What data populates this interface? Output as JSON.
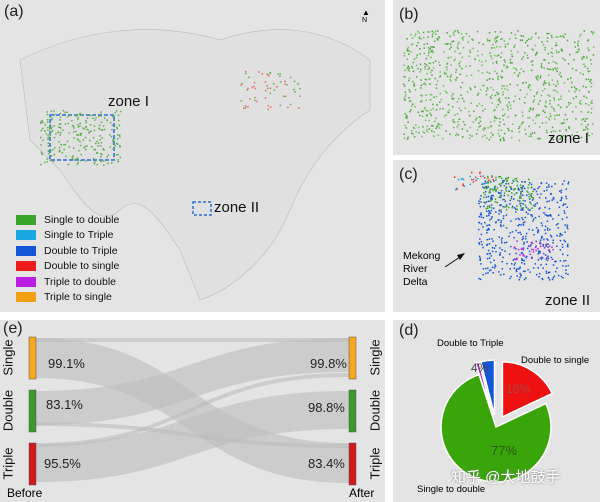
{
  "panels": {
    "a": "(a)",
    "b": "(b)",
    "c": "(c)",
    "d": "(d)",
    "e": "(e)"
  },
  "map_a": {
    "zone1": "zone I",
    "zone2": "zone II",
    "north": "N"
  },
  "map_b": {
    "zone": "zone I"
  },
  "map_c": {
    "zone": "zone II",
    "annotation": [
      "Mekong",
      "River",
      "Delta"
    ]
  },
  "legend": [
    {
      "label": "Single  to double",
      "color": "#3aa52a"
    },
    {
      "label": "Single  to Triple",
      "color": "#1aa8e0"
    },
    {
      "label": "Double to Triple",
      "color": "#1456d8"
    },
    {
      "label": "Double to single",
      "color": "#ee1c1c"
    },
    {
      "label": "Triple   to double",
      "color": "#b81fe0"
    },
    {
      "label": "Triple   to single",
      "color": "#f0a010"
    }
  ],
  "chart_data": [
    {
      "type": "pie",
      "panel": "(d)",
      "slices": [
        {
          "label": "Double to single",
          "value": 18,
          "value_label": "18%",
          "color": "#ee1111",
          "exploded": true
        },
        {
          "label": "Single  to double",
          "value": 77,
          "value_label": "77%",
          "color": "#3aa50a",
          "exploded": false
        },
        {
          "label": "",
          "value": 1,
          "value_label": "",
          "color": "#b020c0",
          "exploded": true
        },
        {
          "label": "Double to Triple",
          "value": 4,
          "value_label": "4%",
          "color": "#1456d8",
          "exploded": true
        }
      ]
    },
    {
      "type": "sankey",
      "panel": "(e)",
      "left_label": "Before",
      "right_label": "After",
      "nodes": [
        {
          "label": "Single",
          "color": "#f5a81c",
          "before_pct": "99.1%",
          "after_pct": "99.8%"
        },
        {
          "label": "Double",
          "color": "#3a9a2a",
          "before_pct": "83.1%",
          "after_pct": "98.8%"
        },
        {
          "label": "Triple",
          "color": "#d01a1a",
          "before_pct": "95.5%",
          "after_pct": "83.4%"
        }
      ]
    }
  ],
  "watermark": "知乎 @大地鼓手"
}
